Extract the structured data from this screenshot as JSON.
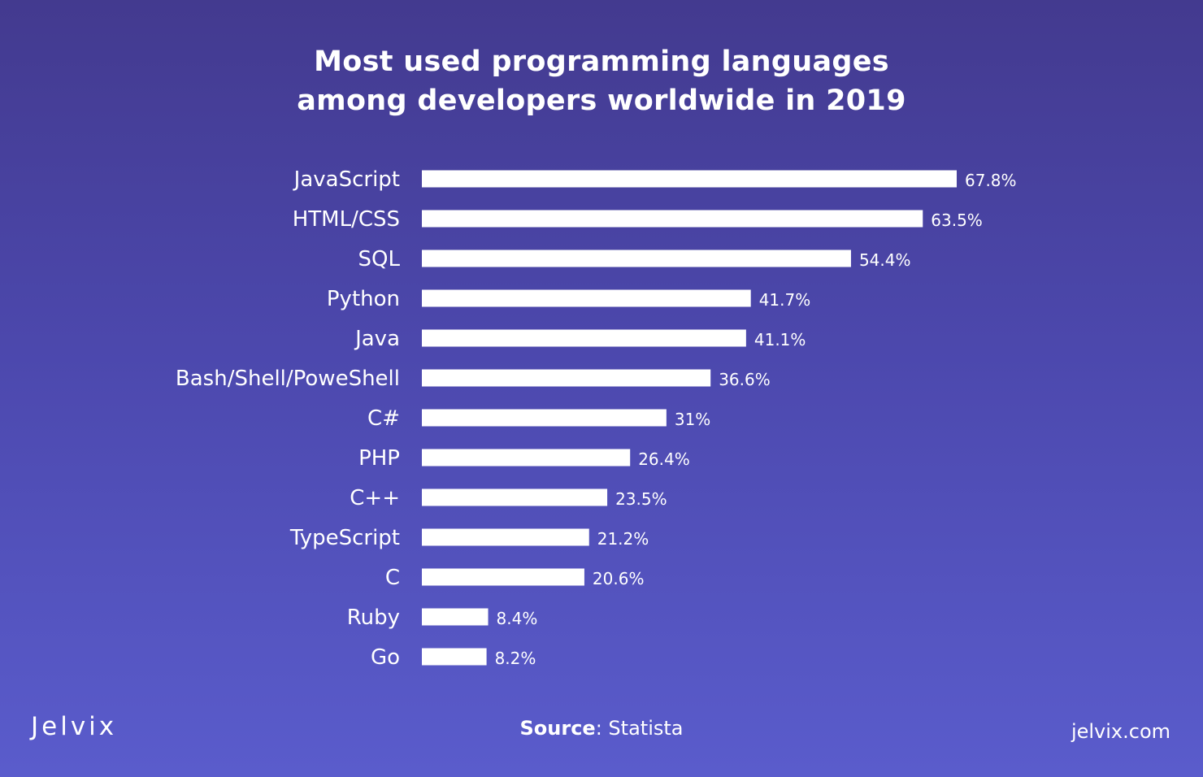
{
  "title_line1": "Most used programming languages",
  "title_line2": "among developers worldwide in 2019",
  "footer": {
    "logo": "Jelvix",
    "source_label": "Source",
    "source_separator": ":",
    "source_value": " Statista",
    "url": "jelvix.com"
  },
  "colors": {
    "background_top": "#433a8f",
    "background_bottom": "#5a5ccc",
    "bar": "#ffffff",
    "text": "#ffffff"
  },
  "chart_data": {
    "type": "bar",
    "orientation": "horizontal",
    "title": "Most used programming languages among developers worldwide in 2019",
    "categories": [
      "JavaScript",
      "HTML/CSS",
      "SQL",
      "Python",
      "Java",
      "Bash/Shell/PoweShell",
      "C#",
      "PHP",
      "C++",
      "TypeScript",
      "C",
      "Ruby",
      "Go"
    ],
    "values": [
      67.8,
      63.5,
      54.4,
      41.7,
      41.1,
      36.6,
      31,
      26.4,
      23.5,
      21.2,
      20.6,
      8.4,
      8.2
    ],
    "value_labels": [
      "67.8%",
      "63.5%",
      "54.4%",
      "41.7%",
      "41.1%",
      "36.6%",
      "31%",
      "26.4%",
      "23.5%",
      "21.2%",
      "20.6%",
      "8.4%",
      "8.2%"
    ],
    "unit": "%",
    "xlim": [
      0,
      67.8
    ],
    "grid": false,
    "legend": "none"
  }
}
